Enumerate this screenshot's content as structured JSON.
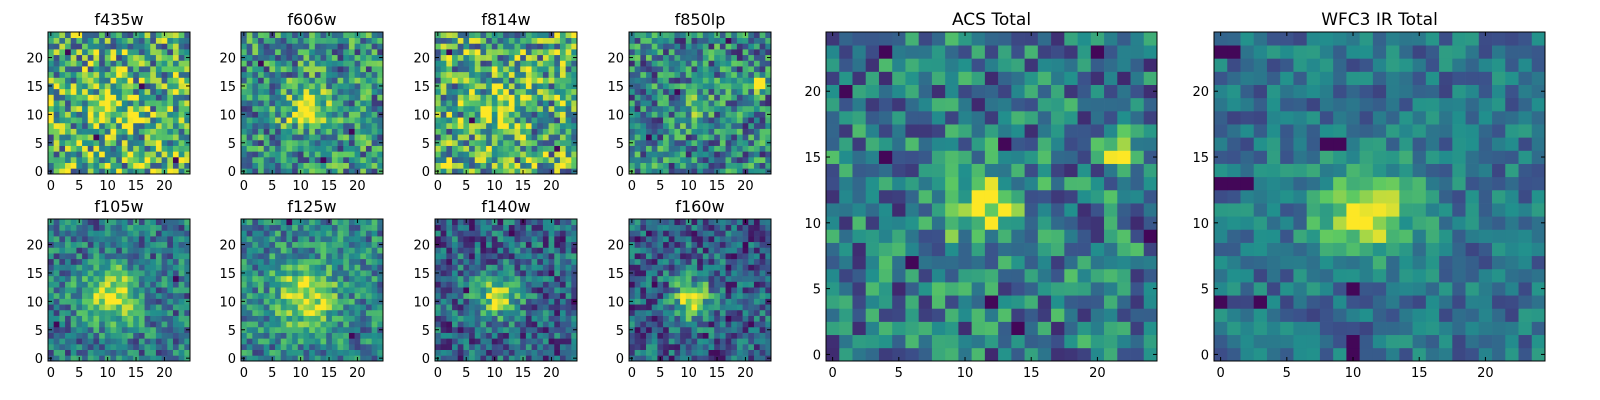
{
  "figure": {
    "background": "#ffffff",
    "colormap": "viridis",
    "colormap_stops": [
      "#440154",
      "#3b528b",
      "#21908d",
      "#5dc962",
      "#fde725"
    ]
  },
  "chart_data": [
    {
      "type": "heatmap",
      "title": "f435w",
      "source_center": [
        11,
        11
      ],
      "source_sigma": 3.2,
      "source_peak": 0.25,
      "background_level": 0.62,
      "noise": 0.42,
      "extra_peaks": [],
      "dark_pixels": [
        [
          3,
          21
        ],
        [
          22,
          2
        ],
        [
          8,
          6
        ],
        [
          16,
          15
        ]
      ],
      "xticks": [
        0,
        5,
        10,
        15,
        20
      ],
      "yticks": [
        0,
        5,
        10,
        15,
        20
      ],
      "xlim": [
        0,
        24
      ],
      "ylim": [
        0,
        24
      ]
    },
    {
      "type": "heatmap",
      "title": "f606w",
      "source_center": [
        11,
        11
      ],
      "source_sigma": 2.6,
      "source_peak": 0.45,
      "background_level": 0.5,
      "noise": 0.34,
      "extra_peaks": [],
      "dark_pixels": [
        [
          14,
          2
        ],
        [
          3,
          19
        ],
        [
          19,
          7
        ]
      ],
      "xticks": [
        0,
        5,
        10,
        15,
        20
      ],
      "yticks": [
        0,
        5,
        10,
        15,
        20
      ],
      "xlim": [
        0,
        24
      ],
      "ylim": [
        0,
        24
      ]
    },
    {
      "type": "heatmap",
      "title": "f814w",
      "source_center": [
        11,
        11
      ],
      "source_sigma": 3.0,
      "source_peak": 0.3,
      "background_level": 0.6,
      "noise": 0.42,
      "extra_peaks": [],
      "dark_pixels": [
        [
          2,
          21
        ],
        [
          21,
          4
        ],
        [
          6,
          9
        ]
      ],
      "xticks": [
        0,
        5,
        10,
        15,
        20
      ],
      "yticks": [
        0,
        5,
        10,
        15,
        20
      ],
      "xlim": [
        0,
        24
      ],
      "ylim": [
        0,
        24
      ]
    },
    {
      "type": "heatmap",
      "title": "f850lp",
      "source_center": [
        11,
        11
      ],
      "source_sigma": 2.4,
      "source_peak": 0.22,
      "background_level": 0.45,
      "noise": 0.34,
      "extra_peaks": [
        [
          22,
          15.5,
          1.1,
          0.6
        ]
      ],
      "dark_pixels": [
        [
          17,
          23
        ],
        [
          8,
          14
        ],
        [
          3,
          6
        ]
      ],
      "xticks": [
        0,
        5,
        10,
        15,
        20
      ],
      "yticks": [
        0,
        5,
        10,
        15,
        20
      ],
      "xlim": [
        0,
        24
      ],
      "ylim": [
        0,
        24
      ]
    },
    {
      "type": "heatmap",
      "title": "f105w",
      "source_center": [
        10.5,
        11
      ],
      "source_sigma": 3.6,
      "source_peak": 0.55,
      "background_level": 0.4,
      "noise": 0.26,
      "extra_peaks": [],
      "dark_pixels": [
        [
          1,
          6
        ],
        [
          22,
          14
        ]
      ],
      "xticks": [
        0,
        5,
        10,
        15,
        20
      ],
      "yticks": [
        0,
        5,
        10,
        15,
        20
      ],
      "xlim": [
        0,
        24
      ],
      "ylim": [
        0,
        24
      ]
    },
    {
      "type": "heatmap",
      "title": "f125w",
      "source_center": [
        11,
        11
      ],
      "source_sigma": 3.8,
      "source_peak": 0.5,
      "background_level": 0.45,
      "noise": 0.26,
      "extra_peaks": [],
      "dark_pixels": [
        [
          8,
          24
        ],
        [
          19,
          4
        ]
      ],
      "xticks": [
        0,
        5,
        10,
        15,
        20
      ],
      "yticks": [
        0,
        5,
        10,
        15,
        20
      ],
      "xlim": [
        0,
        24
      ],
      "ylim": [
        0,
        24
      ]
    },
    {
      "type": "heatmap",
      "title": "f140w",
      "source_center": [
        10.5,
        11
      ],
      "source_sigma": 2.7,
      "source_peak": 0.6,
      "background_level": 0.32,
      "noise": 0.28,
      "extra_peaks": [],
      "dark_pixels": [
        [
          24,
          10
        ],
        [
          5,
          12
        ],
        [
          13,
          22
        ]
      ],
      "xticks": [
        0,
        5,
        10,
        15,
        20
      ],
      "yticks": [
        0,
        5,
        10,
        15,
        20
      ],
      "xlim": [
        0,
        24
      ],
      "ylim": [
        0,
        24
      ]
    },
    {
      "type": "heatmap",
      "title": "f160w",
      "source_center": [
        10.5,
        10.5
      ],
      "source_sigma": 2.4,
      "source_peak": 0.65,
      "background_level": 0.3,
      "noise": 0.28,
      "extra_peaks": [],
      "dark_pixels": [
        [
          4,
          13
        ],
        [
          17,
          7
        ],
        [
          20,
          20
        ]
      ],
      "xticks": [
        0,
        5,
        10,
        15,
        20
      ],
      "yticks": [
        0,
        5,
        10,
        15,
        20
      ],
      "xlim": [
        0,
        24
      ],
      "ylim": [
        0,
        24
      ]
    },
    {
      "type": "heatmap",
      "title": "ACS Total",
      "source_center": [
        11.5,
        11.5
      ],
      "source_sigma": 2.0,
      "source_peak": 0.55,
      "background_level": 0.42,
      "noise": 0.3,
      "extra_peaks": [
        [
          22,
          15.5,
          0.9,
          0.6
        ]
      ],
      "dark_pixels": [
        [
          20,
          23
        ],
        [
          1,
          20
        ],
        [
          4,
          15
        ],
        [
          13,
          16
        ],
        [
          6,
          7
        ],
        [
          12,
          4
        ],
        [
          24,
          9
        ],
        [
          4,
          23
        ],
        [
          14,
          2
        ]
      ],
      "xticks": [
        0,
        5,
        10,
        15,
        20
      ],
      "yticks": [
        0,
        5,
        10,
        15,
        20
      ],
      "xlim": [
        0,
        24
      ],
      "ylim": [
        0,
        24
      ]
    },
    {
      "type": "heatmap",
      "title": "WFC3 IR Total",
      "source_center": [
        11,
        11
      ],
      "source_sigma": 2.6,
      "source_peak": 0.6,
      "background_level": 0.38,
      "noise": 0.18,
      "extra_peaks": [],
      "dark_pixels": [
        [
          0,
          23
        ],
        [
          1,
          23
        ],
        [
          0,
          13
        ],
        [
          1,
          13
        ],
        [
          2,
          13
        ],
        [
          8,
          16
        ],
        [
          9,
          16
        ],
        [
          3,
          4
        ],
        [
          10,
          5
        ],
        [
          10,
          1
        ],
        [
          10,
          0
        ],
        [
          0,
          4
        ]
      ],
      "xticks": [
        0,
        5,
        10,
        15,
        20
      ],
      "yticks": [
        0,
        5,
        10,
        15,
        20
      ],
      "xlim": [
        0,
        24
      ],
      "ylim": [
        0,
        24
      ]
    }
  ]
}
